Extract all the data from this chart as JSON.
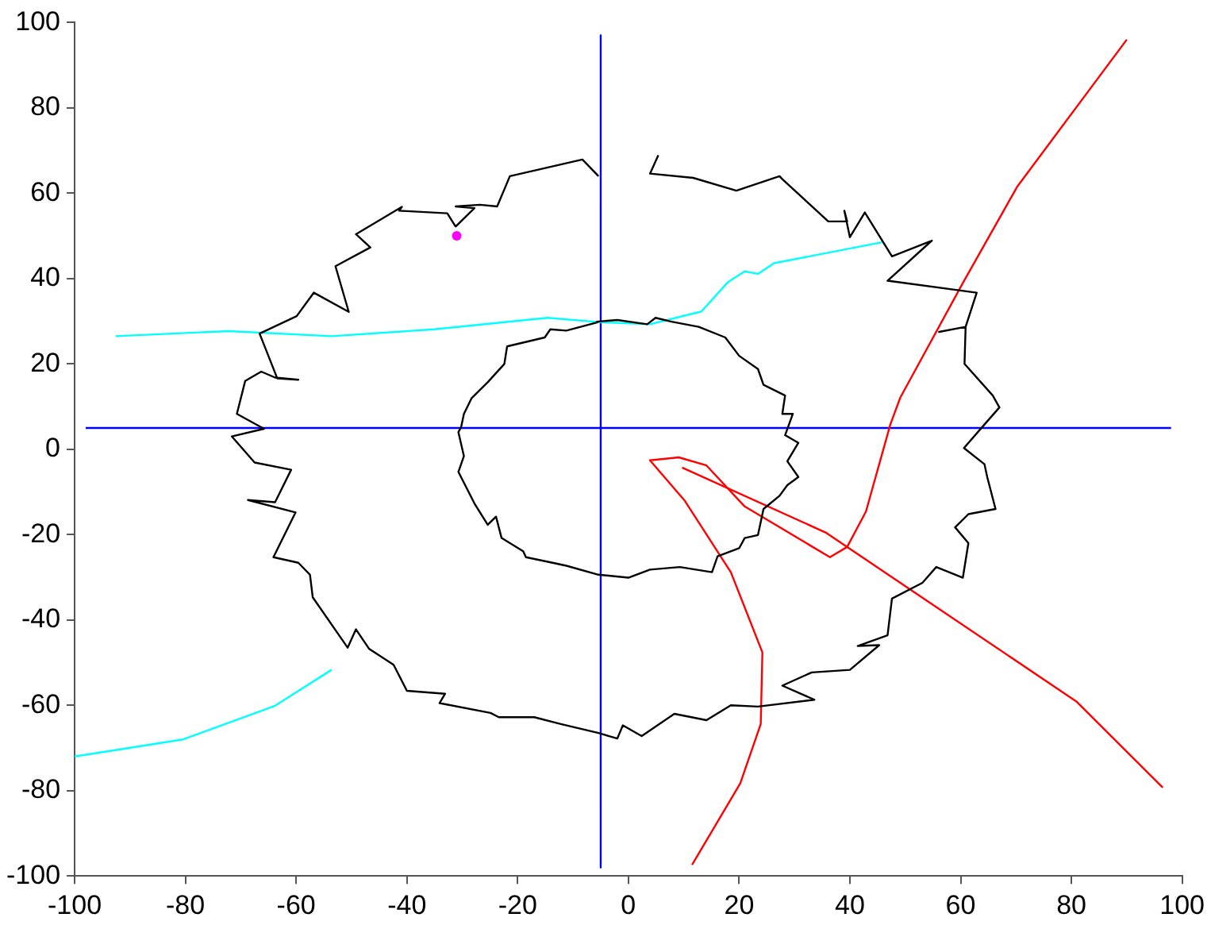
{
  "chart_data": {
    "type": "line",
    "xlim": [
      -100,
      100
    ],
    "ylim": [
      -100,
      100
    ],
    "xticks": [
      -100,
      -80,
      -60,
      -40,
      -20,
      0,
      20,
      40,
      60,
      80,
      100
    ],
    "yticks": [
      -100,
      -80,
      -60,
      -40,
      -20,
      0,
      20,
      40,
      60,
      80,
      100
    ],
    "series": [
      {
        "color": "#000000",
        "x": [
          -5.4,
          -8.3,
          -21.4,
          -23.7,
          -26.8,
          -31.2,
          -27.8,
          -31.2,
          -32.7,
          -41.4,
          -40.9,
          -49.2,
          -46.6,
          -52.9,
          -50.5,
          -56.8,
          -59.9,
          -66.6,
          -63.4,
          -59.6,
          -63.8,
          -66.3,
          -69.2,
          -70.7,
          -65.8,
          -71.6,
          -67.5,
          -60.9,
          -63.8,
          -68.7,
          -60.1,
          -64.1,
          -59.6,
          -57.5,
          -57,
          -50.7,
          -49.2,
          -46.8,
          -42.4,
          -40,
          -33.1,
          -34.1,
          -24.9,
          -23.4,
          -17,
          -12.2,
          -5.4,
          -2,
          -1,
          2.4,
          8.3,
          14.1,
          18.5,
          23.4,
          33.6,
          27.8,
          33.1,
          40,
          45.3,
          41.4,
          46.8,
          47.6,
          53.1,
          55.6,
          60.4,
          61.4,
          59,
          61.4,
          66.3,
          64.8,
          64.3,
          60.6,
          64.3,
          67,
          65.8,
          60.7,
          60.9,
          56.1,
          60.9,
          62.9,
          46.8,
          54.8,
          47.6,
          42.7,
          40,
          39,
          39.5,
          36.1,
          27.8,
          27.3,
          19.5,
          11.7,
          3.9,
          5.4
        ],
        "values": [
          64,
          67.9,
          64,
          56.9,
          57.3,
          56.9,
          56.5,
          52.2,
          55.3,
          55.9,
          56.8,
          50.4,
          47.3,
          42.9,
          32.2,
          36.7,
          31.2,
          27.1,
          16.6,
          16.3,
          16.8,
          18.2,
          16,
          8.3,
          4.8,
          3,
          -3.1,
          -4.8,
          -12.4,
          -11.9,
          -14.8,
          -25.3,
          -26.6,
          -29.4,
          -34.7,
          -46.5,
          -42.2,
          -46.8,
          -50.5,
          -56.6,
          -57.3,
          -59.5,
          -61.8,
          -62.8,
          -62.8,
          -64.4,
          -66.5,
          -67.8,
          -64.7,
          -67.2,
          -62,
          -63.5,
          -60,
          -60.3,
          -58.7,
          -55.4,
          -52.3,
          -51.7,
          -45.9,
          -46.1,
          -43.6,
          -35,
          -31.3,
          -27.6,
          -30.1,
          -22,
          -18.3,
          -15.2,
          -14,
          -6.5,
          -3.5,
          0.3,
          5.8,
          9.8,
          12.6,
          20,
          28.7,
          27.5,
          28.7,
          36.7,
          39.5,
          48.9,
          45.2,
          55.5,
          49.7,
          55.9,
          53.4,
          53.4,
          63.3,
          64,
          60.6,
          63.6,
          64.6,
          68.9
        ]
      },
      {
        "color": "#000000",
        "x": [
          -5.4,
          -11.2,
          -14.1,
          -15.1,
          -21.9,
          -22.4,
          -25.4,
          -28.3,
          -29.7,
          -30.2,
          -30.7,
          -29.7,
          -30.7,
          -27.8,
          -25.4,
          -23.9,
          -22.9,
          -19,
          -18.5,
          -13.7,
          -11.2,
          -5.4,
          0,
          3.9,
          9.3,
          15.1,
          16.1,
          20,
          21,
          23.4,
          24.4,
          27.3,
          28.7,
          30.7,
          28.7,
          30.7,
          28.3,
          29.7,
          27.8,
          28.3,
          24.4,
          23.4,
          20,
          17.5,
          12.7,
          7.8,
          4.9,
          3.4,
          -2,
          -5.8
        ],
        "values": [
          29.8,
          27.8,
          28.1,
          26.2,
          24.1,
          20,
          15.7,
          12,
          8.3,
          5.2,
          4,
          -1.6,
          -5.3,
          -12.7,
          -17.7,
          -15.8,
          -20.8,
          -23.9,
          -25.3,
          -26.6,
          -27.3,
          -29.4,
          -30.1,
          -28.2,
          -27.6,
          -28.8,
          -25.1,
          -23.2,
          -20.8,
          -20.1,
          -14,
          -10.9,
          -8.4,
          -6.5,
          -2.8,
          1.5,
          3.3,
          8.3,
          8.3,
          12.6,
          15.1,
          18.8,
          21.9,
          26.2,
          28.7,
          29.9,
          30.8,
          29.3,
          30.3,
          29.9
        ]
      },
      {
        "color": "#00ffff",
        "x": [
          -92.6,
          -72.2,
          -53.6,
          -35.1,
          -14.6,
          -5.4,
          3.9,
          13.2,
          18,
          21,
          23.4,
          26.3,
          45.8
        ],
        "values": [
          26.5,
          27.7,
          26.5,
          28.1,
          30.8,
          29.8,
          29.3,
          32.3,
          39.2,
          41.7,
          41.1,
          43.6,
          48.5
        ]
      },
      {
        "color": "#00ffff",
        "x": [
          -100,
          -80.4,
          -63.8,
          -53.6
        ],
        "values": [
          -72,
          -68,
          -60.1,
          -51.7
        ]
      },
      {
        "color": "#ff0000",
        "x": [
          90,
          70.2,
          60.5,
          49.1,
          47.3,
          42.9,
          39.5,
          36.4,
          21,
          14.1,
          9.1,
          3.9,
          10.2,
          18.5,
          24.2,
          23.9,
          20.2,
          11.5
        ],
        "values": [
          96,
          61.5,
          39.2,
          12.1,
          5.8,
          -14.6,
          -22.9,
          -25.3,
          -13.4,
          -3.8,
          -1.9,
          -2.6,
          -12.1,
          -28.8,
          -47.6,
          -64.4,
          -78.3,
          -97.4
        ]
      },
      {
        "color": "#ff0000",
        "x": [
          9.7,
          35.6,
          80.9,
          96.5
        ],
        "values": [
          -4.3,
          -19.5,
          -59.1,
          -79.3
        ]
      },
      {
        "color": "#0000ff",
        "x": [
          -98,
          98
        ],
        "values": [
          5,
          5
        ]
      },
      {
        "color": "#0000ff",
        "x": [
          -5,
          -5
        ],
        "values": [
          97,
          -98
        ]
      },
      {
        "type": "scatter",
        "marker": "circle",
        "color": "#ff00ff",
        "x": [
          -31
        ],
        "values": [
          50
        ]
      }
    ]
  }
}
